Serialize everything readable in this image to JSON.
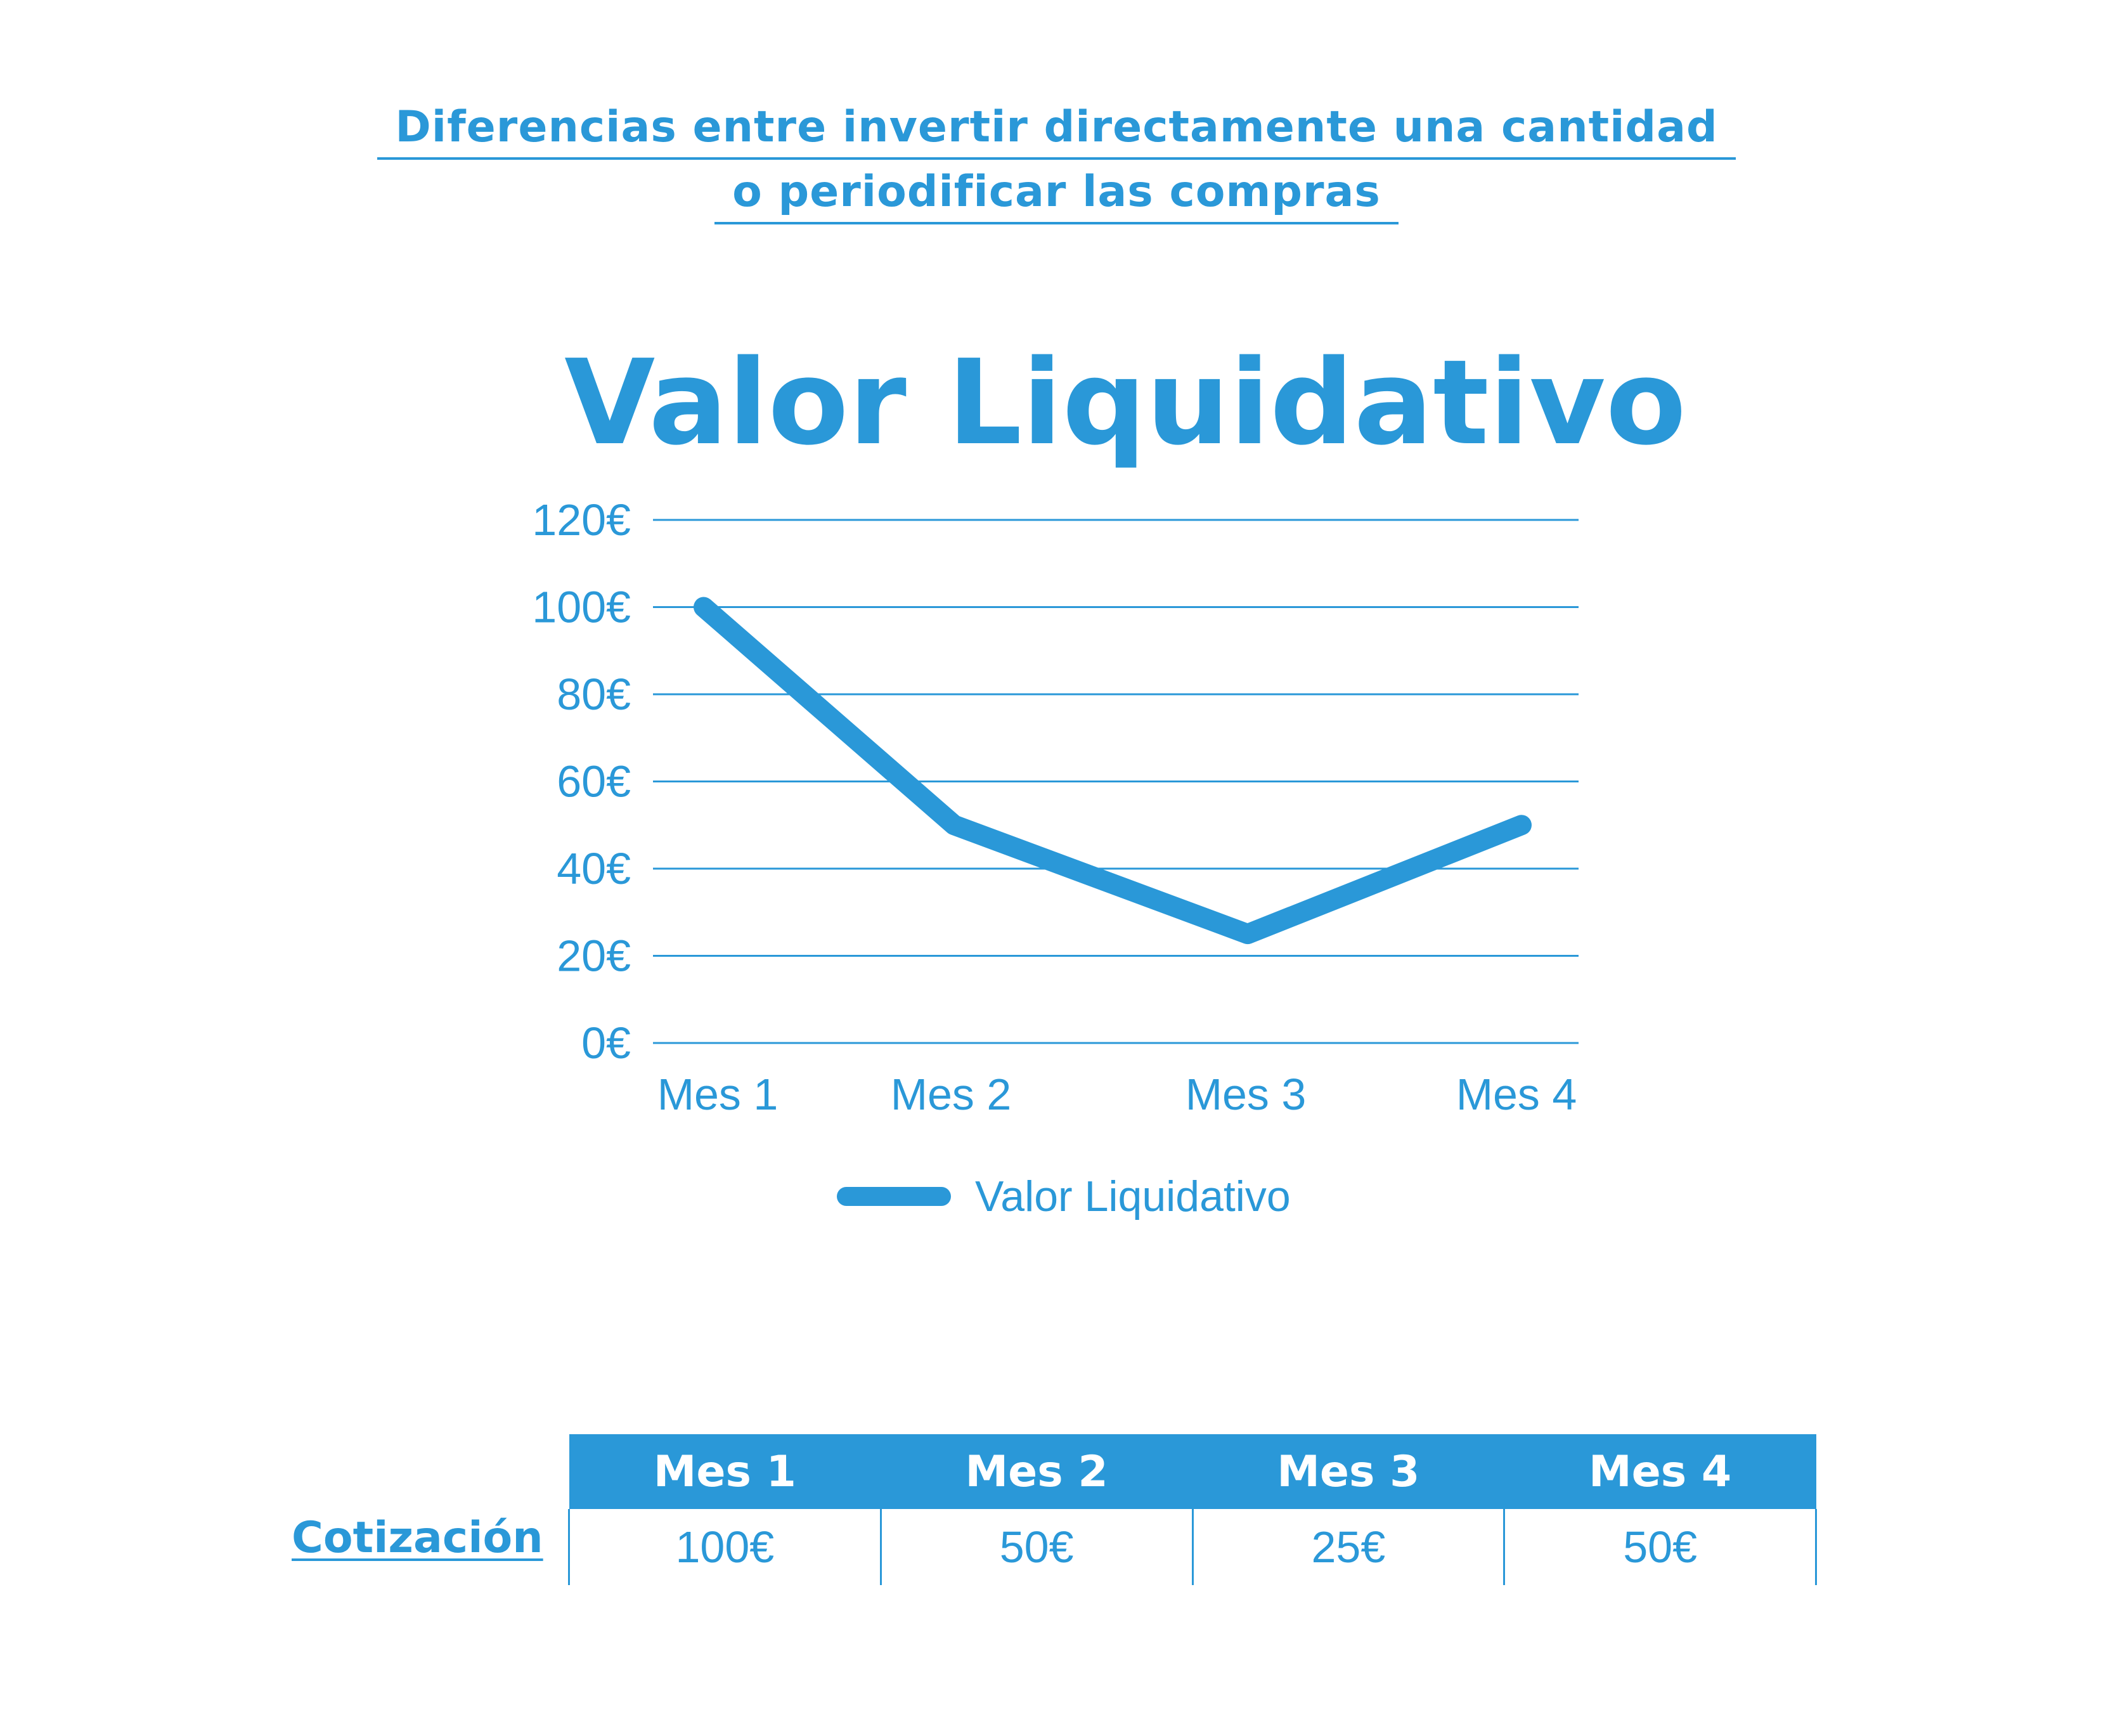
{
  "header": {
    "line1": "Diferencias entre invertir directamente una cantidad",
    "line2": "o periodificar las compras"
  },
  "chart_data": {
    "type": "line",
    "title": "Valor Liquidativo",
    "categories": [
      "Mes 1",
      "Mes 2",
      "Mes 3",
      "Mes 4"
    ],
    "series": [
      {
        "name": "Valor Liquidativo",
        "values": [
          100,
          50,
          25,
          50
        ]
      }
    ],
    "y_ticks": [
      "0€",
      "20€",
      "40€",
      "60€",
      "80€",
      "100€",
      "120€"
    ],
    "ylim": [
      0,
      120
    ],
    "grid": true,
    "legend": "bottom",
    "color": "#2a98d8"
  },
  "table": {
    "row_label": "Cotización",
    "headers": [
      "Mes 1",
      "Mes 2",
      "Mes 3",
      "Mes 4"
    ],
    "values": [
      "100€",
      "50€",
      "25€",
      "50€"
    ]
  }
}
